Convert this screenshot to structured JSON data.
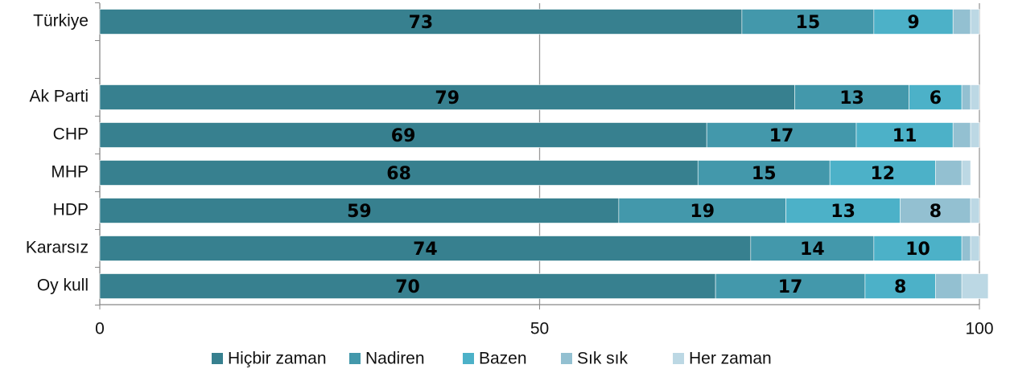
{
  "chart_data": {
    "type": "stacked-barh",
    "categories": [
      "Türkiye",
      null,
      "Ak Parti",
      "CHP",
      "MHP",
      "HDP",
      "Kararsız",
      "Oy kull"
    ],
    "series": [
      {
        "name": "Hiçbir zaman",
        "color": "#37808f",
        "values": [
          73,
          null,
          79,
          69,
          68,
          59,
          74,
          70
        ]
      },
      {
        "name": "Nadiren",
        "color": "#4398ab",
        "values": [
          15,
          null,
          13,
          17,
          15,
          19,
          14,
          17
        ]
      },
      {
        "name": "Bazen",
        "color": "#4cb1c8",
        "values": [
          9,
          null,
          6,
          11,
          12,
          13,
          10,
          8
        ]
      },
      {
        "name": "Sık sık",
        "color": "#93c0d1",
        "values": [
          2,
          null,
          1,
          2,
          3,
          8,
          1,
          3
        ]
      },
      {
        "name": "Her zaman",
        "color": "#bcd8e4",
        "values": [
          1,
          null,
          1,
          1,
          1,
          1,
          1,
          3
        ]
      }
    ],
    "xlim": [
      0,
      100
    ],
    "xticks": [
      0,
      50,
      100
    ],
    "grid": true,
    "legend": "bottom"
  }
}
